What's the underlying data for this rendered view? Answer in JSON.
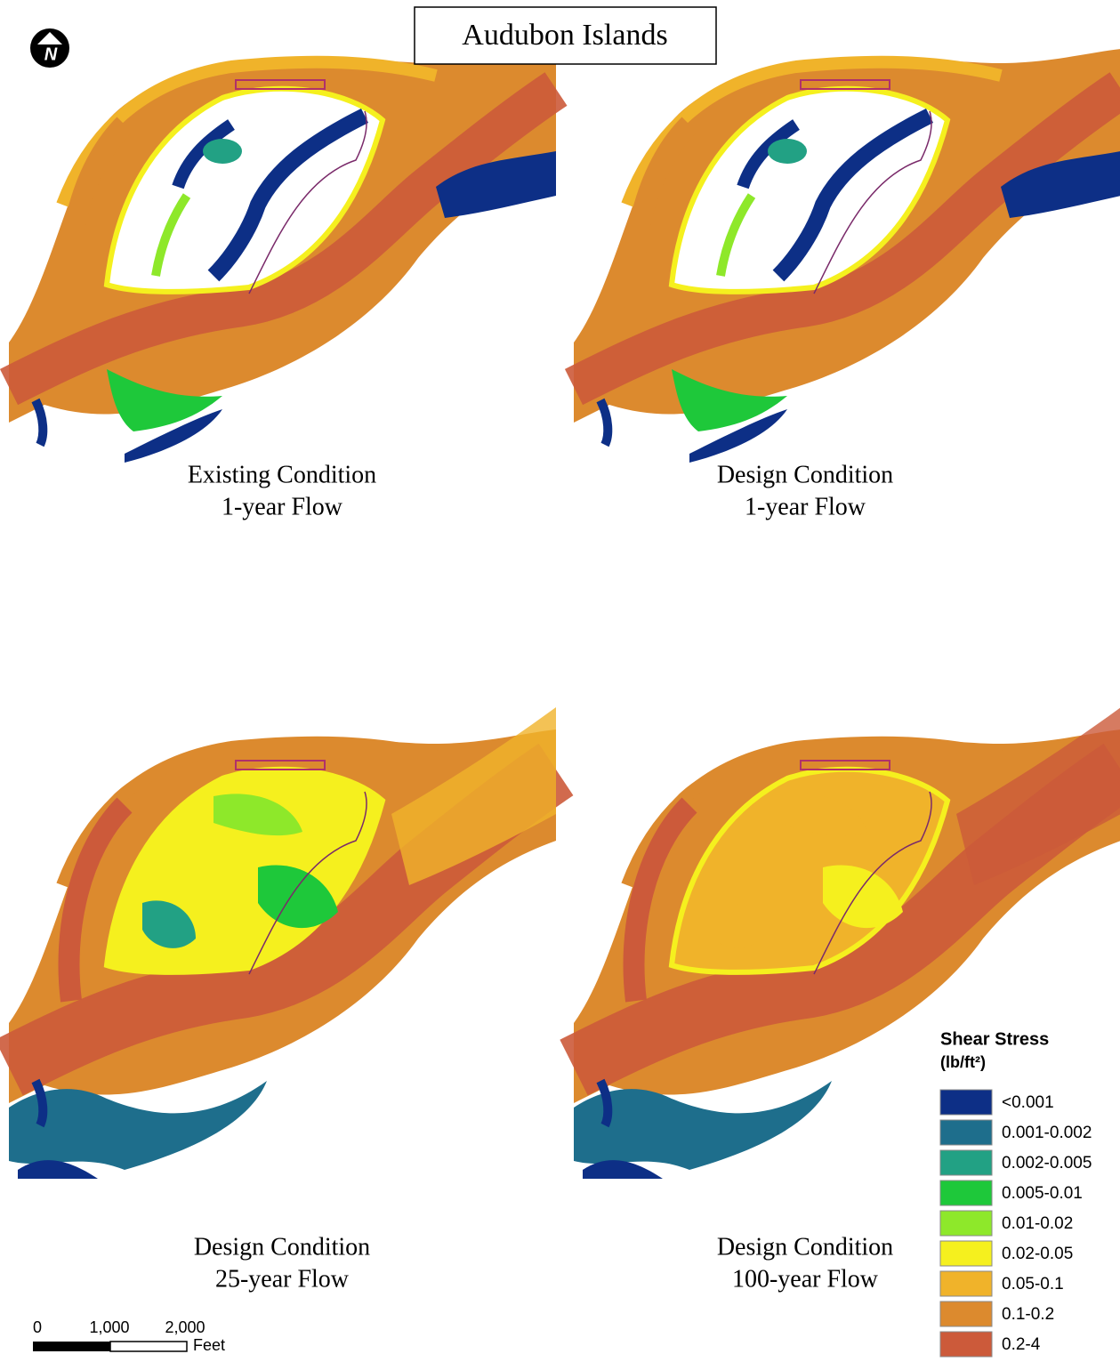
{
  "title": "Audubon Islands",
  "north": "N",
  "panels": [
    {
      "line1": "Existing Condition",
      "line2": "1-year Flow"
    },
    {
      "line1": "Design Condition",
      "line2": "1-year Flow"
    },
    {
      "line1": "Design Condition",
      "line2": "25-year Flow"
    },
    {
      "line1": "Design Condition",
      "line2": "100-year Flow"
    }
  ],
  "legend": {
    "title": "Shear Stress",
    "unit": "(lb/ft²)",
    "items": [
      {
        "label": "<0.001",
        "color": "#0d2f86"
      },
      {
        "label": "0.001-0.002",
        "color": "#1e6e8c"
      },
      {
        "label": "0.002-0.005",
        "color": "#22a184"
      },
      {
        "label": "0.005-0.01",
        "color": "#1ec83a"
      },
      {
        "label": "0.01-0.02",
        "color": "#8ee82a"
      },
      {
        "label": "0.02-0.05",
        "color": "#f5f01e"
      },
      {
        "label": "0.05-0.1",
        "color": "#f0b32a"
      },
      {
        "label": "0.1-0.2",
        "color": "#dc8a2e"
      },
      {
        "label": "0.2-4",
        "color": "#cc5a3a"
      }
    ]
  },
  "scale": {
    "labels": [
      "0",
      "1,000",
      "2,000"
    ],
    "unit": "Feet"
  }
}
